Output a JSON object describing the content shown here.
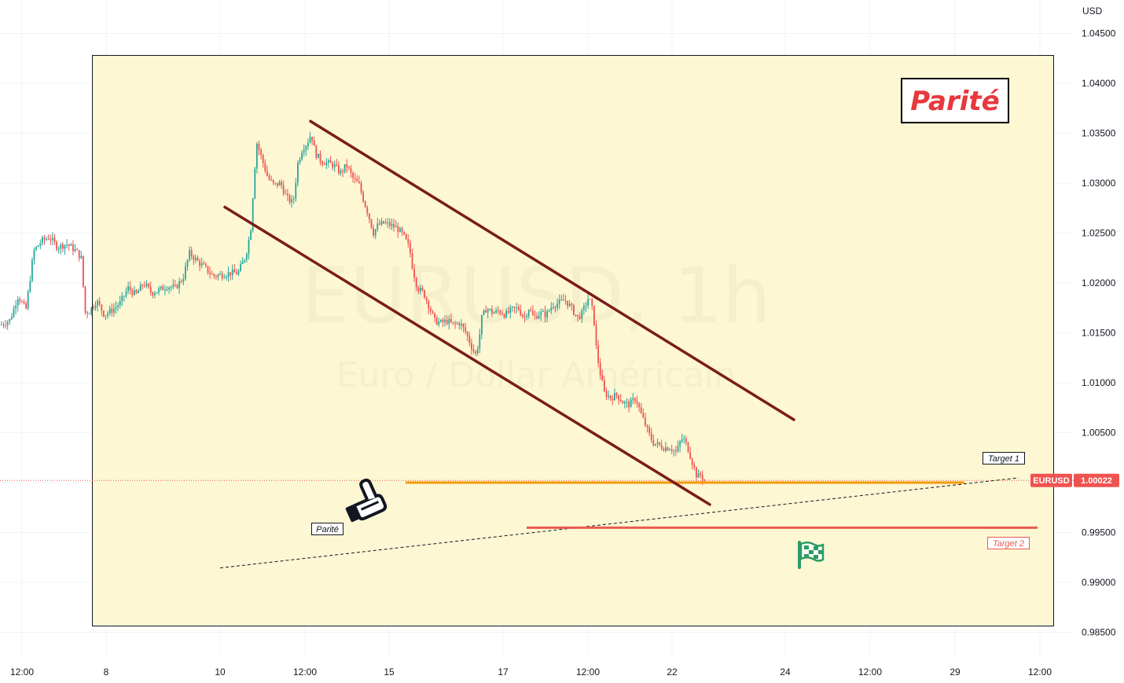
{
  "chart_data": {
    "type": "candlestick",
    "symbol": "EURUSD",
    "watermark": {
      "symbol": "EURUSD, 1h",
      "description": "Euro / Dollar Américain"
    },
    "title": "Parité",
    "currency": "USD",
    "last_price": "1.00022",
    "ylim": [
      0.983,
      1.048
    ],
    "y_ticks": [
      "1.04500",
      "1.04000",
      "1.03500",
      "1.03000",
      "1.02500",
      "1.02000",
      "1.01500",
      "1.01000",
      "1.00500",
      "1.00000",
      "0.99500",
      "0.99000",
      "0.98500"
    ],
    "x_ticks": [
      "12:00",
      "8",
      "10",
      "12:00",
      "15",
      "17",
      "12:00",
      "22",
      "24",
      "12:00",
      "29",
      "12:00"
    ],
    "price_path": [
      [
        0,
        1.0158
      ],
      [
        12,
        1.0163
      ],
      [
        22,
        1.0187
      ],
      [
        32,
        1.0173
      ],
      [
        42,
        1.0232
      ],
      [
        52,
        1.0242
      ],
      [
        62,
        1.0246
      ],
      [
        72,
        1.0236
      ],
      [
        84,
        1.0239
      ],
      [
        96,
        1.0232
      ],
      [
        104,
        1.0223
      ],
      [
        106,
        1.017
      ],
      [
        113,
        1.0172
      ],
      [
        122,
        1.0182
      ],
      [
        132,
        1.0168
      ],
      [
        142,
        1.0173
      ],
      [
        152,
        1.018
      ],
      [
        162,
        1.0195
      ],
      [
        172,
        1.0188
      ],
      [
        182,
        1.02
      ],
      [
        192,
        1.019
      ],
      [
        202,
        1.0193
      ],
      [
        212,
        1.0197
      ],
      [
        222,
        1.0195
      ],
      [
        232,
        1.0205
      ],
      [
        240,
        1.023
      ],
      [
        250,
        1.0222
      ],
      [
        260,
        1.0215
      ],
      [
        270,
        1.0207
      ],
      [
        280,
        1.0208
      ],
      [
        292,
        1.021
      ],
      [
        302,
        1.021
      ],
      [
        312,
        1.0228
      ],
      [
        318,
        1.0253
      ],
      [
        320,
        1.0275
      ],
      [
        322,
        1.0305
      ],
      [
        326,
        1.034
      ],
      [
        332,
        1.0325
      ],
      [
        340,
        1.0305
      ],
      [
        348,
        1.0298
      ],
      [
        356,
        1.03
      ],
      [
        364,
        1.0285
      ],
      [
        372,
        1.028
      ],
      [
        378,
        1.032
      ],
      [
        384,
        1.0335
      ],
      [
        390,
        1.034
      ],
      [
        395,
        1.035
      ],
      [
        400,
        1.033
      ],
      [
        408,
        1.0322
      ],
      [
        416,
        1.032
      ],
      [
        424,
        1.0318
      ],
      [
        432,
        1.031
      ],
      [
        440,
        1.0318
      ],
      [
        448,
        1.0305
      ],
      [
        456,
        1.0298
      ],
      [
        462,
        1.0282
      ],
      [
        468,
        1.0268
      ],
      [
        474,
        1.025
      ],
      [
        480,
        1.0258
      ],
      [
        488,
        1.026
      ],
      [
        496,
        1.0258
      ],
      [
        504,
        1.0255
      ],
      [
        512,
        1.0248
      ],
      [
        520,
        1.0235
      ],
      [
        524,
        1.0215
      ],
      [
        530,
        1.0195
      ],
      [
        538,
        1.019
      ],
      [
        546,
        1.0175
      ],
      [
        552,
        1.0162
      ],
      [
        560,
        1.016
      ],
      [
        568,
        1.0162
      ],
      [
        576,
        1.0158
      ],
      [
        584,
        1.016
      ],
      [
        592,
        1.015
      ],
      [
        598,
        1.0138
      ],
      [
        604,
        1.0128
      ],
      [
        608,
        1.014
      ],
      [
        612,
        1.0165
      ],
      [
        618,
        1.0175
      ],
      [
        626,
        1.017
      ],
      [
        634,
        1.0172
      ],
      [
        642,
        1.0168
      ],
      [
        650,
        1.0173
      ],
      [
        658,
        1.0175
      ],
      [
        666,
        1.0165
      ],
      [
        672,
        1.0175
      ],
      [
        678,
        1.0165
      ],
      [
        686,
        1.017
      ],
      [
        694,
        1.0168
      ],
      [
        702,
        1.0178
      ],
      [
        710,
        1.018
      ],
      [
        718,
        1.0183
      ],
      [
        726,
        1.0175
      ],
      [
        734,
        1.0165
      ],
      [
        740,
        1.017
      ],
      [
        748,
        1.0186
      ],
      [
        754,
        1.017
      ],
      [
        758,
        1.0132
      ],
      [
        762,
        1.0112
      ],
      [
        768,
        1.009
      ],
      [
        776,
        1.0085
      ],
      [
        784,
        1.0088
      ],
      [
        792,
        1.008
      ],
      [
        800,
        1.0078
      ],
      [
        808,
        1.0085
      ],
      [
        814,
        1.007
      ],
      [
        818,
        1.0062
      ],
      [
        824,
        1.005
      ],
      [
        830,
        1.004
      ],
      [
        836,
        1.0038
      ],
      [
        844,
        1.0035
      ],
      [
        852,
        1.0035
      ],
      [
        860,
        1.003
      ],
      [
        864,
        1.004
      ],
      [
        868,
        1.0045
      ],
      [
        874,
        1.0035
      ],
      [
        878,
        1.0025
      ],
      [
        882,
        1.0015
      ],
      [
        886,
        1.0005
      ],
      [
        890,
        1.0008
      ],
      [
        896,
        1.0002
      ]
    ],
    "annotations": {
      "channel_upper": [
        [
          395,
          1.0362
        ],
        [
          1010,
          1.0063
        ]
      ],
      "channel_lower": [
        [
          286,
          1.0276
        ],
        [
          903,
          0.9978
        ]
      ],
      "target1_level": {
        "x1": 516,
        "x2": 1227,
        "price": 1.0,
        "label": "Target 1",
        "color": "#f59a0a"
      },
      "target2_level": {
        "x1": 670,
        "x2": 1320,
        "price": 0.99548,
        "label": "Target 2",
        "color": "#e75b52"
      },
      "trend_dashed": [
        [
          280,
          0.99145
        ],
        [
          1296,
          1.00048
        ]
      ],
      "parite_tag": "Parité"
    }
  },
  "colors": {
    "up": "#26a69a",
    "down": "#ef5350",
    "highlight_bg": "#fdf7d3",
    "channel": "#7a1c1c"
  },
  "icons": {
    "pointer": "pointing-hand-icon",
    "flag": "checkered-flag-icon"
  }
}
